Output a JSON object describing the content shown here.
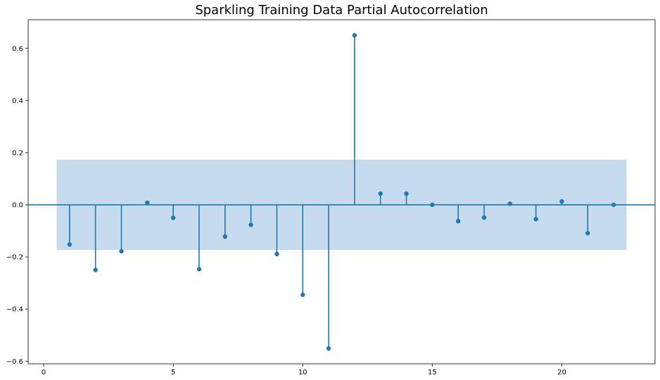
{
  "chart_data": {
    "type": "stem",
    "title": "Sparkling Training Data Partial Autocorrelation",
    "xlabel": "",
    "ylabel": "",
    "xlim": [
      -0.6,
      23.6
    ],
    "ylim": [
      -0.61,
      0.71
    ],
    "xticks": [
      0,
      5,
      10,
      15,
      20
    ],
    "xtick_labels": [
      "0",
      "5",
      "10",
      "15",
      "20"
    ],
    "yticks": [
      -0.6,
      -0.4,
      -0.2,
      0.0,
      0.2,
      0.4,
      0.6
    ],
    "ytick_labels": [
      "−0.6",
      "−0.4",
      "−0.2",
      "0.0",
      "0.2",
      "0.4",
      "0.6"
    ],
    "confidence_band": {
      "lower": -0.173,
      "upper": 0.173,
      "x_start": 0.5,
      "x_end": 22.5,
      "color": "#c6dbed"
    },
    "grid": false,
    "color": "#1f77b4",
    "x": [
      1,
      2,
      3,
      4,
      5,
      6,
      7,
      8,
      9,
      10,
      11,
      12,
      13,
      14,
      15,
      16,
      17,
      18,
      19,
      20,
      21,
      22
    ],
    "values": [
      -0.152,
      -0.25,
      -0.178,
      0.008,
      -0.05,
      -0.247,
      -0.122,
      -0.077,
      -0.189,
      -0.345,
      -0.551,
      0.65,
      0.043,
      0.043,
      0.0,
      -0.063,
      -0.049,
      0.004,
      -0.055,
      0.013,
      -0.109,
      0.0
    ]
  }
}
